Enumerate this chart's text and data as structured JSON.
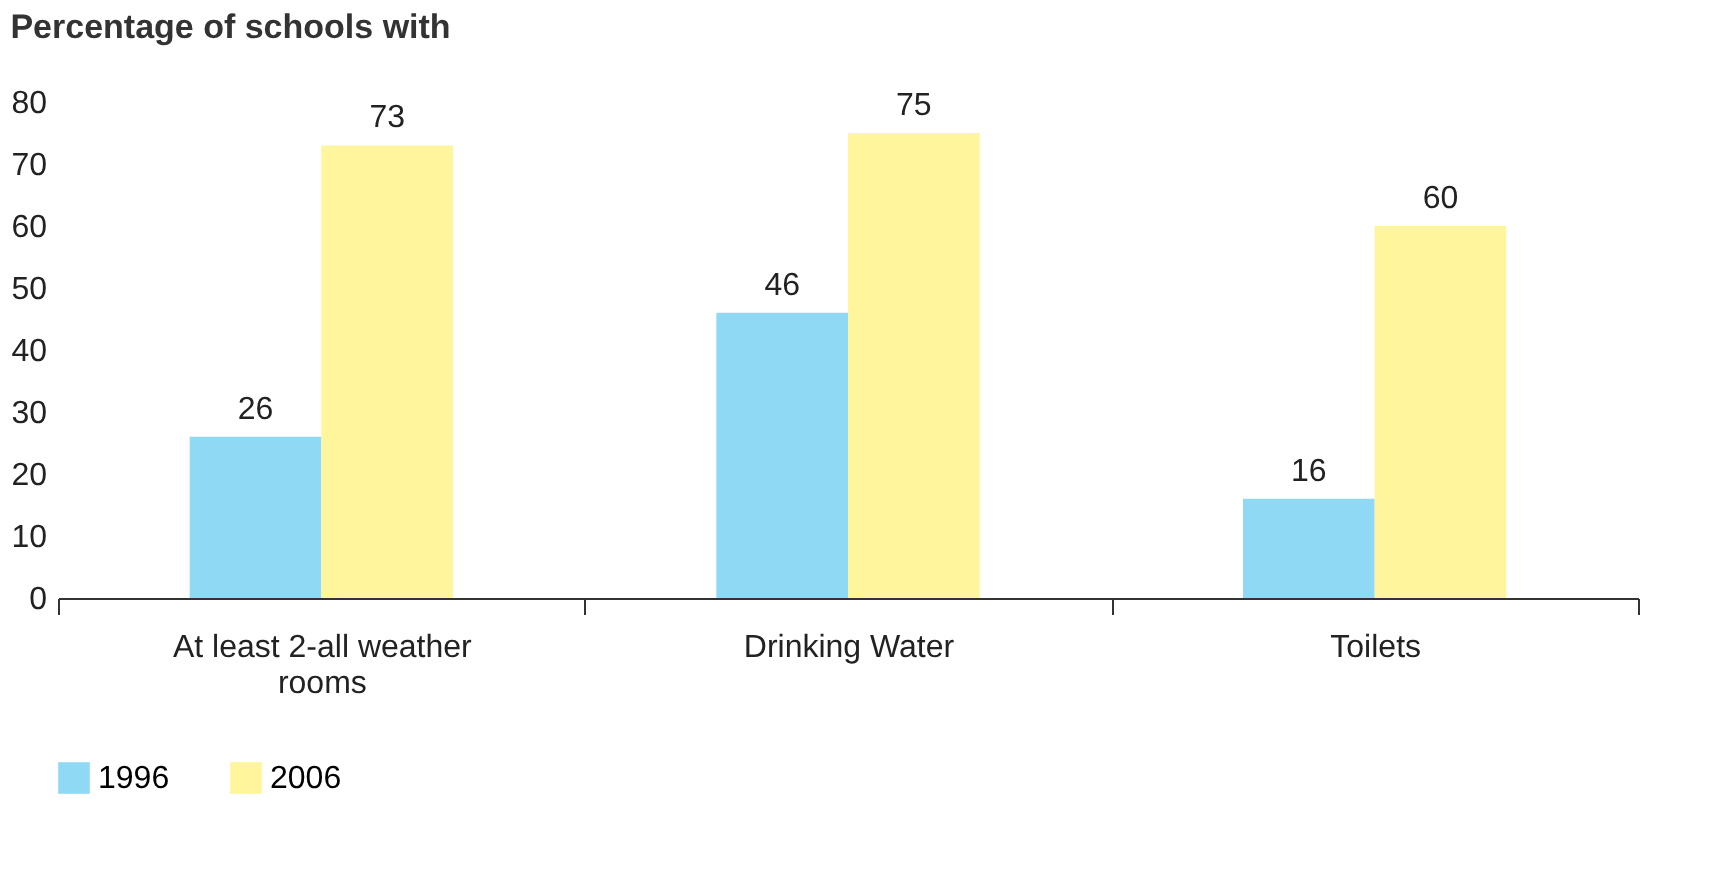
{
  "chart_data": {
    "type": "bar",
    "title": "Percentage of schools with",
    "categories": [
      "At least 2-all weather rooms",
      "Drinking Water",
      "Toilets"
    ],
    "series": [
      {
        "name": "1996",
        "color": "#8fd9f4",
        "values": [
          26,
          46,
          16
        ]
      },
      {
        "name": "2006",
        "color": "#fff59d",
        "values": [
          73,
          75,
          60
        ]
      }
    ],
    "ylim": [
      0,
      80
    ],
    "yticks": [
      0,
      10,
      20,
      30,
      40,
      50,
      60,
      70,
      80
    ],
    "grid": false,
    "legend": "bottom left",
    "data_labels": true
  }
}
